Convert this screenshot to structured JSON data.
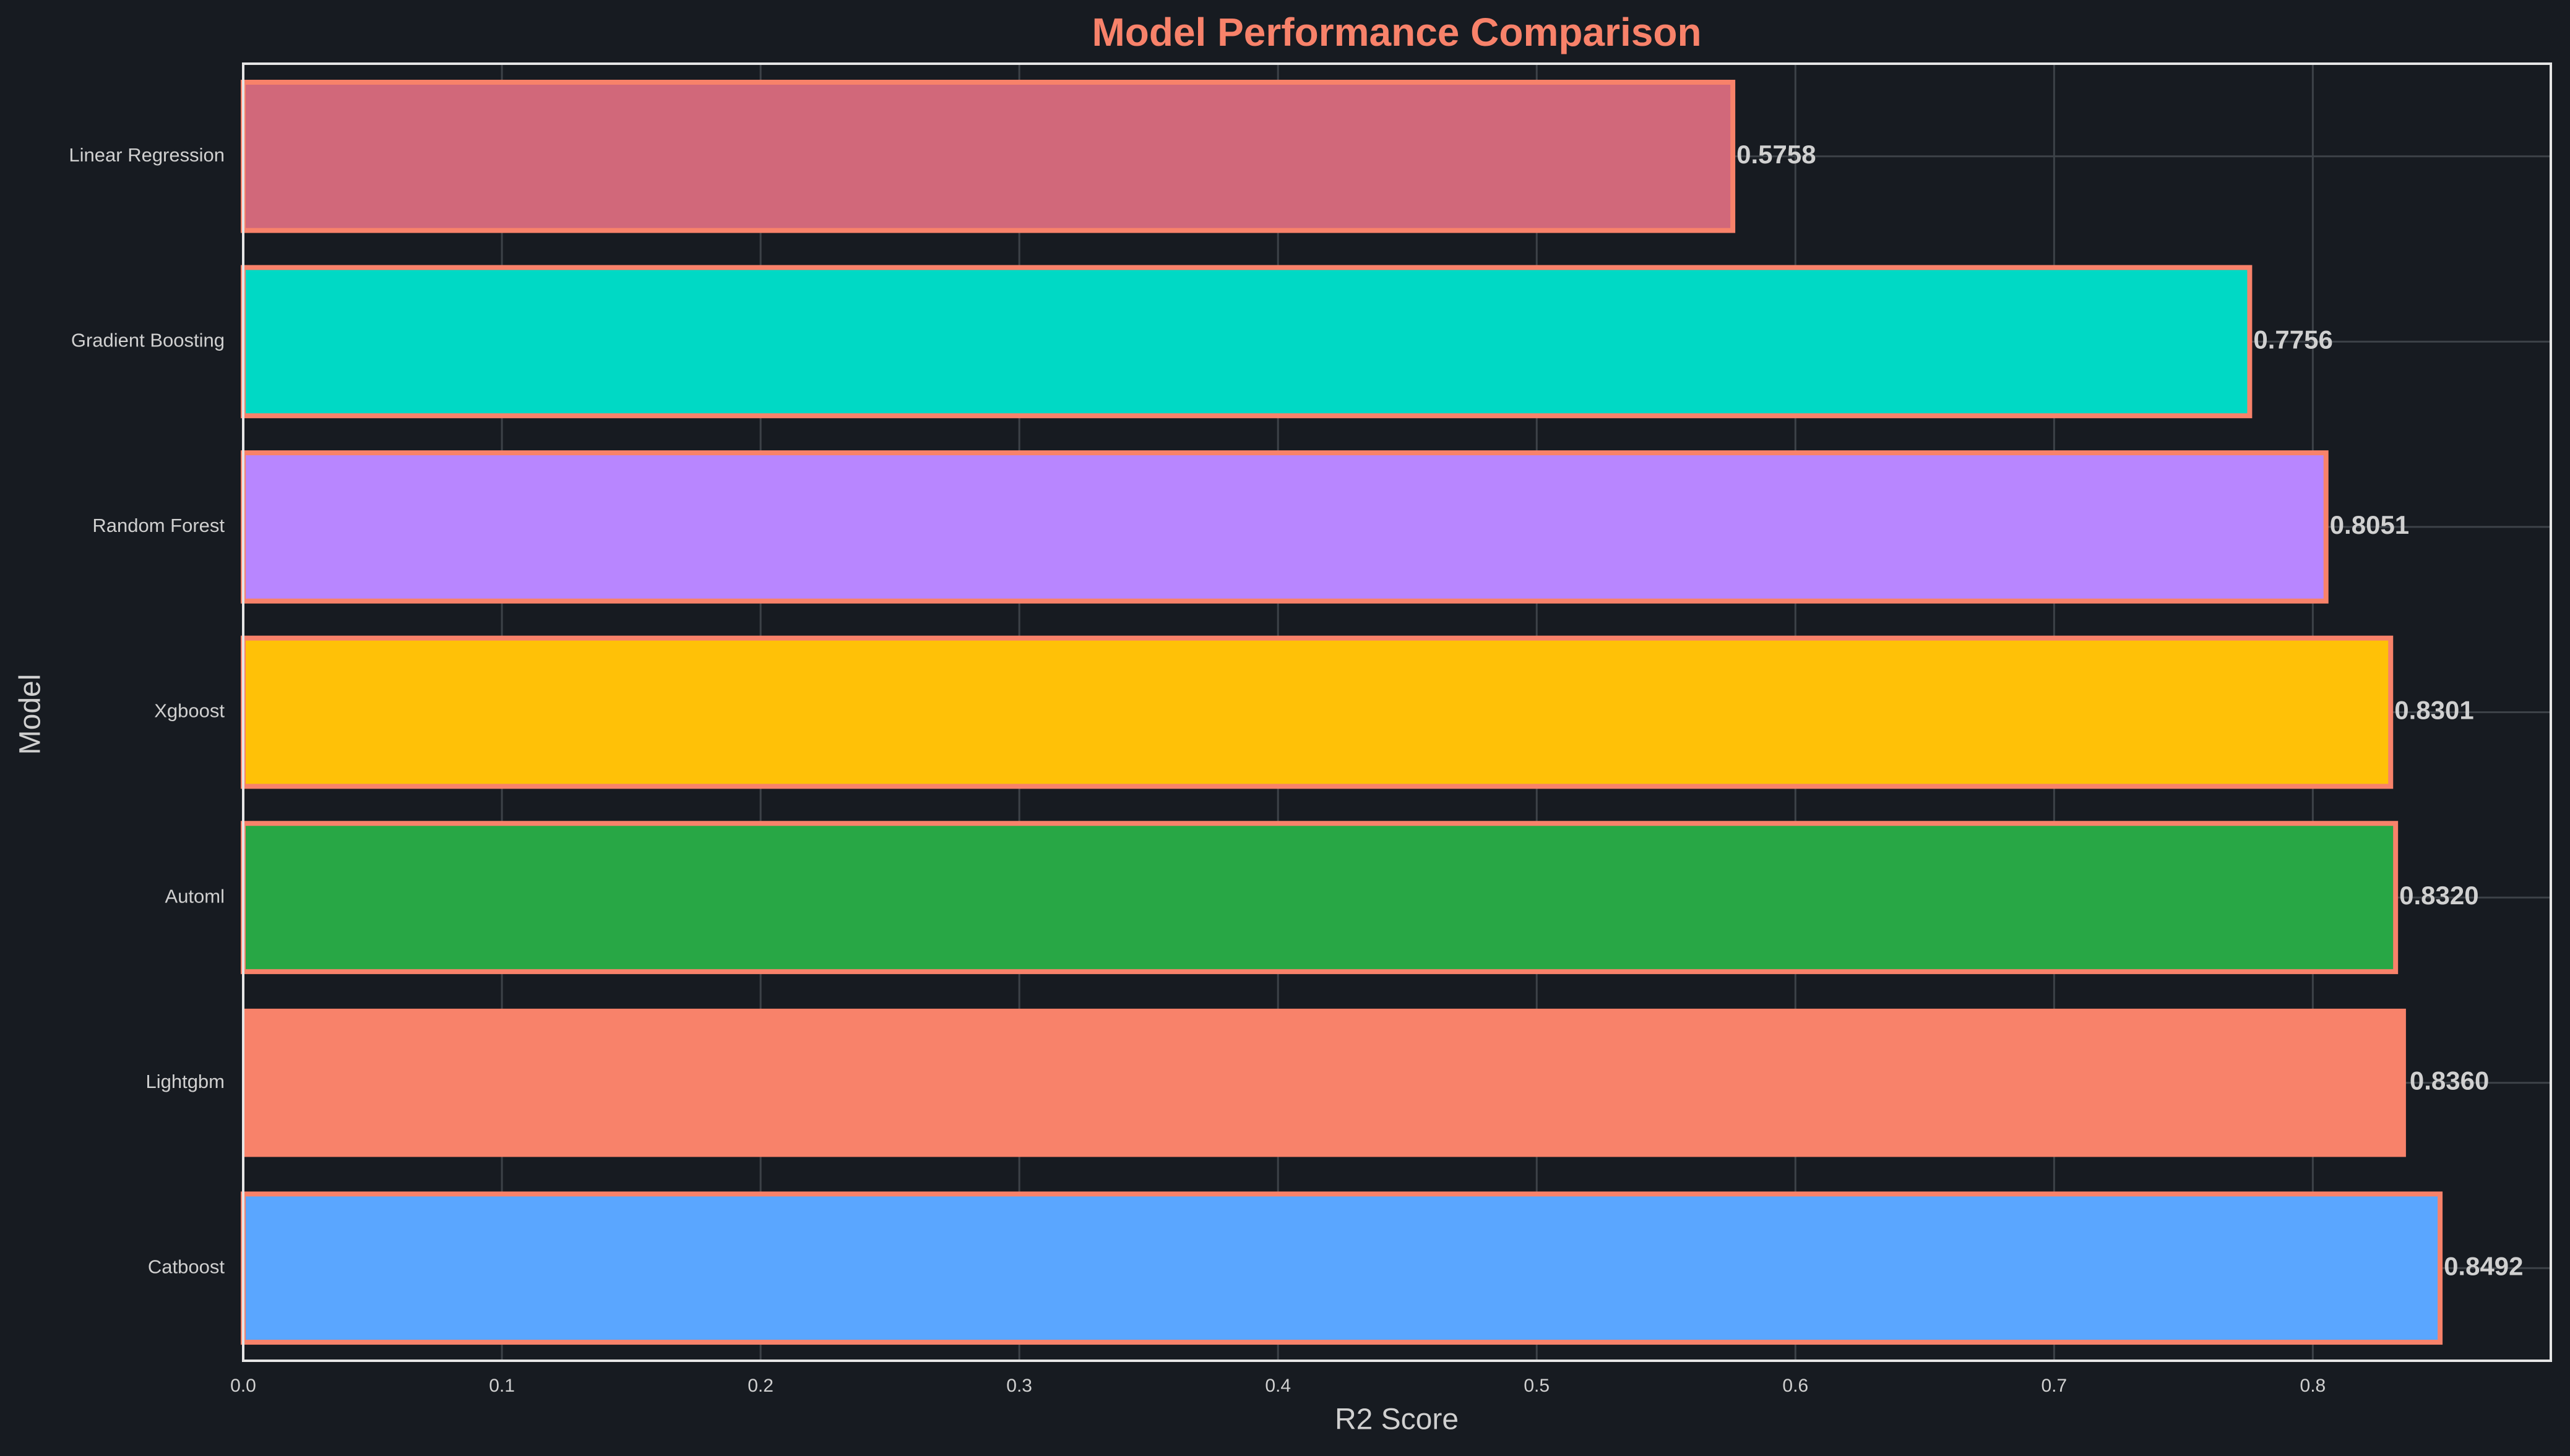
{
  "chart_data": {
    "type": "bar",
    "orientation": "horizontal",
    "title": "Model Performance Comparison",
    "xlabel": "R2 Score",
    "ylabel": "Model",
    "xlim": [
      0,
      0.892
    ],
    "x_ticks": [
      0.0,
      0.1,
      0.2,
      0.3,
      0.4,
      0.5,
      0.6,
      0.7,
      0.8
    ],
    "x_tick_labels": [
      "0.0",
      "0.1",
      "0.2",
      "0.3",
      "0.4",
      "0.5",
      "0.6",
      "0.7",
      "0.8"
    ],
    "grid": true,
    "categories": [
      "Linear Regression",
      "Gradient Boosting",
      "Random Forest",
      "Xgboost",
      "Automl",
      "Lightgbm",
      "Catboost"
    ],
    "values": [
      0.5758,
      0.7756,
      0.8051,
      0.8301,
      0.832,
      0.836,
      0.8492
    ],
    "value_labels": [
      "0.5758",
      "0.7756",
      "0.8051",
      "0.8301",
      "0.8320",
      "0.8360",
      "0.8492"
    ],
    "bar_colors": [
      "#d1687a",
      "#00d9c5",
      "#b886ff",
      "#ffc107",
      "#28a745",
      "#f8826a",
      "#5aa6ff"
    ],
    "outlined": [
      true,
      true,
      true,
      true,
      true,
      false,
      true
    ]
  },
  "colors": {
    "background": "#171b21",
    "title": "#f8826a",
    "text": "#d0d0d0",
    "grid": "#3d4248",
    "frame": "#e6e6e6",
    "bar_outline": "#f8826a"
  }
}
